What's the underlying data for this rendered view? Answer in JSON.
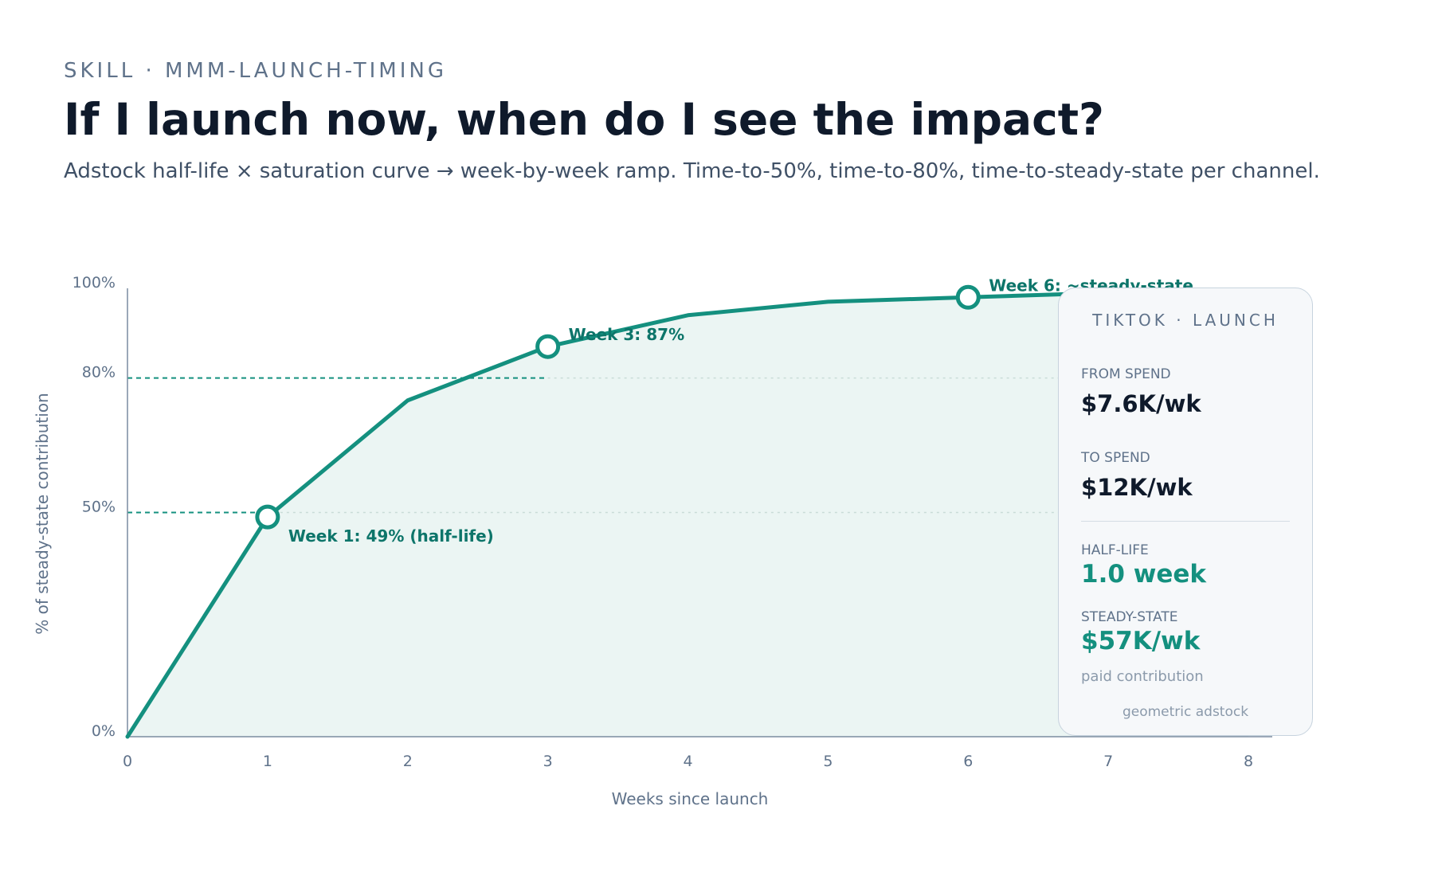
{
  "header": {
    "eyebrow": "SKILL · MMM-LAUNCH-TIMING",
    "title": "If I launch now, when do I see the impact?",
    "subtitle": "Adstock half-life × saturation curve → week-by-week ramp. Time-to-50%, time-to-80%, time-to-steady-state per channel."
  },
  "chart_data": {
    "type": "area",
    "x": [
      0,
      1,
      2,
      3,
      4,
      5,
      6,
      7,
      8
    ],
    "series": [
      {
        "values": [
          0,
          49,
          75,
          87,
          94,
          97,
          98,
          99,
          99.5
        ]
      }
    ],
    "xlabel": "Weeks since launch",
    "ylabel": "% of steady-state contribution",
    "xlim": [
      0,
      8
    ],
    "ylim": [
      0,
      100
    ],
    "x_ticks": [
      "0",
      "1",
      "2",
      "3",
      "4",
      "5",
      "6",
      "7",
      "8"
    ],
    "y_ticks": [
      {
        "value": 0,
        "label": "0%"
      },
      {
        "value": 50,
        "label": "50%"
      },
      {
        "value": 80,
        "label": "80%"
      },
      {
        "value": 100,
        "label": "100%"
      }
    ],
    "reference_lines": [
      {
        "y": 50,
        "x_end": 1
      },
      {
        "y": 80,
        "x_end": 3
      }
    ],
    "annotations": [
      {
        "x": 1,
        "y": 49,
        "text": "Week 1: 49% (half-life)"
      },
      {
        "x": 3,
        "y": 87,
        "text": "Week 3: 87%"
      },
      {
        "x": 6,
        "y": 98,
        "text": "Week 6: ~steady-state"
      }
    ],
    "grid": false,
    "colors": {
      "line": "#14907f",
      "fill": "#ebf5f3",
      "annotation": "#0d756a",
      "axis": "#7a8ca0"
    }
  },
  "card": {
    "title": "TIKTOK · LAUNCH",
    "from_label": "FROM SPEND",
    "from_value": "$7.6K/wk",
    "to_label": "TO SPEND",
    "to_value": "$12K/wk",
    "halflife_label": "HALF-LIFE",
    "halflife_value": "1.0 week",
    "steady_label": "STEADY-STATE",
    "steady_value": "$57K/wk",
    "steady_note": "paid contribution",
    "footer": "geometric adstock"
  }
}
